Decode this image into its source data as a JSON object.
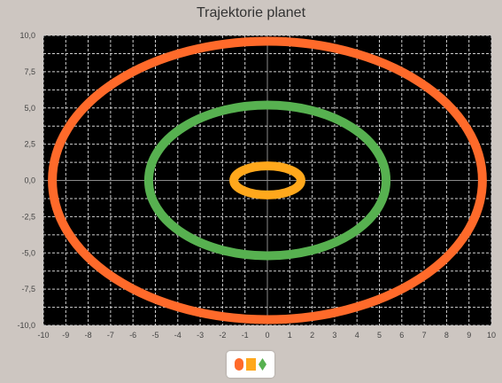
{
  "chart_data": {
    "type": "scatter",
    "title": "Trajektorie planet",
    "xlabel": "",
    "ylabel": "",
    "xlim": [
      -10,
      10
    ],
    "ylim": [
      -10,
      10
    ],
    "grid": true,
    "background": "#000000",
    "x_ticks": [
      "-10",
      "-9",
      "-8",
      "-7",
      "-6",
      "-5",
      "-4",
      "-3",
      "-2",
      "-1",
      "0",
      "1",
      "2",
      "3",
      "4",
      "5",
      "6",
      "7",
      "8",
      "9",
      "10"
    ],
    "y_ticks": [
      "10,0",
      "7,5",
      "5,0",
      "2,5",
      "0,0",
      "-2,5",
      "-5,0",
      "-7,5",
      "-10,0"
    ],
    "legend_placement": "bottom-center",
    "series": [
      {
        "color": "#ff6a2a",
        "marker": "circle",
        "center": [
          0,
          0
        ],
        "radius_x": 9.6,
        "radius_y": 9.6
      },
      {
        "color": "#ffa81c",
        "marker": "square",
        "center": [
          0,
          0
        ],
        "radius_x": 1.5,
        "radius_y": 1.0
      },
      {
        "color": "#57b150",
        "marker": "diamond",
        "center": [
          0,
          0
        ],
        "radius_x": 5.3,
        "radius_y": 5.2
      }
    ]
  }
}
